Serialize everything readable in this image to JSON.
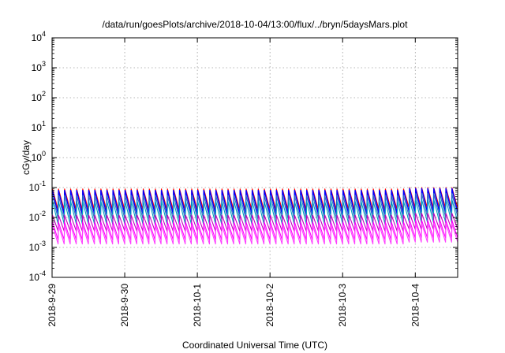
{
  "chart_data": {
    "type": "line",
    "title": "/data/run/goesPlots/archive/2018-10-04/13:00/flux/../bryn/5daysMars.plot",
    "xlabel": "Coordinated Universal Time (UTC)",
    "ylabel": "cGy/day",
    "y_scale": "log",
    "ylim": [
      0.0001,
      10000
    ],
    "y_ticks": [
      {
        "exp": "-4",
        "value": 0.0001
      },
      {
        "exp": "-3",
        "value": 0.001
      },
      {
        "exp": "-2",
        "value": 0.01
      },
      {
        "exp": "-1",
        "value": 0.1
      },
      {
        "exp": "0",
        "value": 1
      },
      {
        "exp": "1",
        "value": 10
      },
      {
        "exp": "2",
        "value": 100
      },
      {
        "exp": "3",
        "value": 1000
      },
      {
        "exp": "4",
        "value": 10000
      }
    ],
    "y_tick_base": "10",
    "xlim": [
      "2018-09-29",
      "2018-10-04T14:00"
    ],
    "x_ticks": [
      "2018-9-29",
      "2018-9-30",
      "2018-10-1",
      "2018-10-2",
      "2018-10-3",
      "2018-10-4"
    ],
    "grid": true,
    "legend": "none",
    "pattern": {
      "description": "periodic sawtooth bands, repeating about every 2 hours",
      "period_hours": 2,
      "step_date": "2018-10-03T22:00",
      "top_band_peak": 0.09,
      "top_band_trough": 0.015,
      "bottom_band_peak": 0.006,
      "bottom_band_trough": 0.0013
    },
    "series": [
      {
        "color": "#ff0000",
        "peak": 0.09,
        "trough": 0.018
      },
      {
        "color": "#0000ff",
        "peak": 0.08,
        "trough": 0.013
      },
      {
        "color": "#3070c0",
        "peak": 0.055,
        "trough": 0.009
      },
      {
        "color": "#00a0c0",
        "peak": 0.035,
        "trough": 0.006
      },
      {
        "color": "#c000c0",
        "peak": 0.012,
        "trough": 0.0035
      },
      {
        "color": "#ff00ff",
        "peak": 0.007,
        "trough": 0.0018
      },
      {
        "color": "#ff40ff",
        "peak": 0.0055,
        "trough": 0.0013
      }
    ]
  }
}
